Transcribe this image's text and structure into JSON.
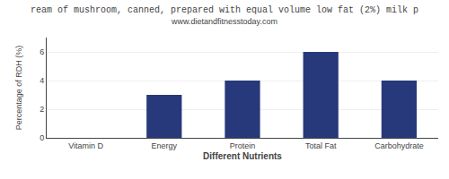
{
  "chart_data": {
    "type": "bar",
    "title": "ream of mushroom, canned, prepared with equal volume low fat (2%) milk p",
    "subtitle": "www.dietandfitnesstoday.com",
    "categories": [
      "Vitamin D",
      "Energy",
      "Protein",
      "Total Fat",
      "Carbohydrate"
    ],
    "values": [
      0,
      3,
      4,
      6,
      4
    ],
    "color": "#27397a",
    "xlabel": "Different Nutrients",
    "ylabel": "Percentage of RDH (%)",
    "ylim": [
      0,
      7
    ],
    "yticks": [
      0,
      2,
      4,
      6
    ],
    "grid": true
  }
}
